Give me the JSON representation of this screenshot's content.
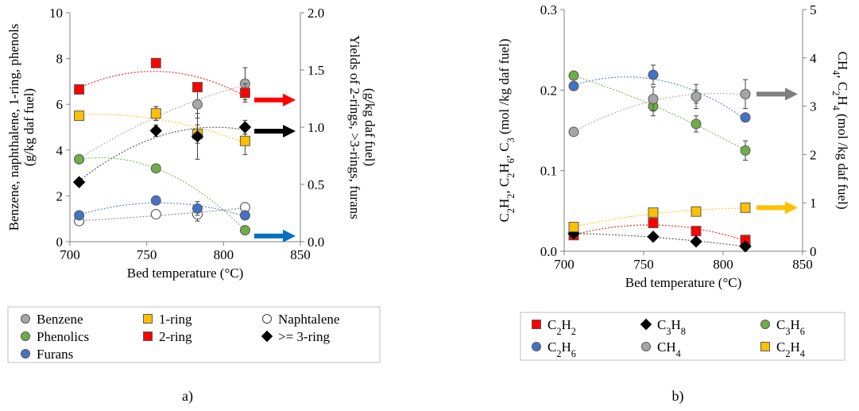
{
  "chart_data": [
    {
      "panel_label": "a)",
      "type": "scatter",
      "xlabel": "Bed temperature (°C)",
      "xlim": [
        700,
        850
      ],
      "x_ticks": [
        "700",
        "750",
        "800",
        "850"
      ],
      "ylabel_left": "Benzene, naphthalene, 1-ring, phenols (g/kg daf fuel)",
      "ylabel_left_lines": [
        "Benzene, naphthalene, 1-ring, phenols",
        "(g/kg daf fuel)"
      ],
      "ylim_left": [
        0,
        10
      ],
      "y_ticks_left": [
        "0",
        "2",
        "4",
        "6",
        "8",
        "10"
      ],
      "ylabel_right": "Yields of 2-rings, >3-rings, furans (g/kg daf fuel)",
      "ylabel_right_lines": [
        "Yields of 2-rings, >3-rings, furans",
        "(g/kg daf fuel)"
      ],
      "ylim_right": [
        0,
        2.0
      ],
      "y_ticks_right": [
        "0.0",
        "0.5",
        "1.0",
        "1.5",
        "2.0"
      ],
      "grid": false,
      "legend_position": "below",
      "legend_entries": [
        "Benzene",
        "1-ring",
        "Naphtalene",
        "Phenolics",
        "2-ring",
        ">= 3-ring",
        "Furans"
      ],
      "series": [
        {
          "name": "Benzene",
          "axis": "left",
          "marker": "circle",
          "color": "#a6a6a6",
          "x": [
            706,
            756,
            783,
            814
          ],
          "y": [
            3.6,
            5.6,
            6.0,
            6.9
          ],
          "err": [
            0,
            0.3,
            0.6,
            0.7
          ]
        },
        {
          "name": "1-ring",
          "axis": "left",
          "marker": "square",
          "color": "#ffc000",
          "x": [
            706,
            756,
            783,
            814
          ],
          "y": [
            5.5,
            5.6,
            4.7,
            4.4
          ],
          "err": [
            0,
            0.3,
            0.4,
            0.6
          ]
        },
        {
          "name": "Naphtalene",
          "axis": "left",
          "marker": "circle-open",
          "color": "#ffffff",
          "x": [
            706,
            756,
            783,
            814
          ],
          "y": [
            0.9,
            1.2,
            1.2,
            1.5
          ],
          "err": [
            0,
            0.1,
            0.3,
            0.2
          ]
        },
        {
          "name": "Phenolics",
          "axis": "left",
          "marker": "circle",
          "color": "#70ad47",
          "x": [
            706,
            756,
            814
          ],
          "y": [
            3.6,
            3.2,
            0.5
          ],
          "err": [
            0,
            0,
            0.1
          ]
        },
        {
          "name": "2-ring",
          "axis": "right",
          "marker": "square",
          "color": "#ff0000",
          "x": [
            706,
            756,
            783,
            814
          ],
          "y": [
            1.33,
            1.56,
            1.35,
            1.3
          ],
          "err": [
            0,
            0.03,
            0.03,
            0.08
          ]
        },
        {
          "name": ">= 3-ring",
          "axis": "right",
          "marker": "diamond",
          "color": "#000000",
          "x": [
            706,
            756,
            783,
            814
          ],
          "y": [
            0.52,
            0.97,
            0.92,
            1.0
          ],
          "err": [
            0,
            0.05,
            0.2,
            0.06
          ]
        },
        {
          "name": "Furans",
          "axis": "right",
          "marker": "circle",
          "color": "#4472c4",
          "x": [
            706,
            756,
            783,
            814
          ],
          "y": [
            0.23,
            0.36,
            0.29,
            0.23
          ],
          "err": [
            0,
            0.03,
            0.06,
            0.02
          ]
        }
      ],
      "arrows": [
        {
          "color": "#ff0000",
          "target_series": "2-ring",
          "direction": "right"
        },
        {
          "color": "#000000",
          "target_series": ">= 3-ring",
          "direction": "right"
        },
        {
          "color": "#0070c0",
          "target_series": "Furans",
          "direction": "right"
        }
      ]
    },
    {
      "panel_label": "b)",
      "type": "scatter",
      "xlabel": "Bed temperature (°C)",
      "xlim": [
        700,
        850
      ],
      "x_ticks": [
        "700",
        "750",
        "800",
        "850"
      ],
      "ylabel_left": "C2H2, C2H6, C3 (mol /kg daf fuel)",
      "ylim_left": [
        0,
        0.3
      ],
      "y_ticks_left": [
        "0.0",
        "0.1",
        "0.2",
        "0.3"
      ],
      "ylabel_right": "CH4, C2H4 (mol /kg daf fuel)",
      "ylim_right": [
        0,
        5
      ],
      "y_ticks_right": [
        "0",
        "1",
        "2",
        "3",
        "4",
        "5"
      ],
      "grid": false,
      "legend_position": "below",
      "legend_entries": [
        "C2H2",
        "C3H8",
        "C3H6",
        "C2H6",
        "CH4",
        "C2H4"
      ],
      "series": [
        {
          "name": "C2H2",
          "axis": "left",
          "marker": "square",
          "color": "#ff0000",
          "x": [
            706,
            756,
            783,
            814
          ],
          "y": [
            0.02,
            0.035,
            0.025,
            0.014
          ],
          "err": [
            0,
            0.005,
            0.005,
            0.004
          ]
        },
        {
          "name": "C3H8",
          "axis": "left",
          "marker": "diamond",
          "color": "#000000",
          "x": [
            706,
            756,
            783,
            814
          ],
          "y": [
            0.022,
            0.018,
            0.012,
            0.006
          ],
          "err": [
            0,
            0.002,
            0.002,
            0.002
          ]
        },
        {
          "name": "C3H6",
          "axis": "left",
          "marker": "circle",
          "color": "#70ad47",
          "x": [
            706,
            756,
            783,
            814
          ],
          "y": [
            0.218,
            0.18,
            0.158,
            0.125
          ],
          "err": [
            0,
            0.012,
            0.01,
            0.012
          ]
        },
        {
          "name": "C2H6",
          "axis": "left",
          "marker": "circle",
          "color": "#4472c4",
          "x": [
            706,
            756,
            783,
            814
          ],
          "y": [
            0.205,
            0.219,
            0.192,
            0.166
          ],
          "err": [
            0,
            0.012,
            0.008,
            0.005
          ]
        },
        {
          "name": "CH4",
          "axis": "right",
          "marker": "circle",
          "color": "#a6a6a6",
          "x": [
            706,
            756,
            783,
            814
          ],
          "y": [
            2.47,
            3.15,
            3.2,
            3.25
          ],
          "err": [
            0,
            0.25,
            0.25,
            0.3
          ]
        },
        {
          "name": "C2H4",
          "axis": "right",
          "marker": "square",
          "color": "#ffc000",
          "x": [
            706,
            756,
            783,
            814
          ],
          "y": [
            0.5,
            0.8,
            0.82,
            0.9
          ],
          "err": [
            0,
            0.03,
            0.03,
            0.03
          ]
        }
      ],
      "arrows": [
        {
          "color": "#7f7f7f",
          "target_series": "CH4",
          "direction": "right"
        },
        {
          "color": "#ffc000",
          "target_series": "C2H4",
          "direction": "right"
        }
      ]
    }
  ]
}
